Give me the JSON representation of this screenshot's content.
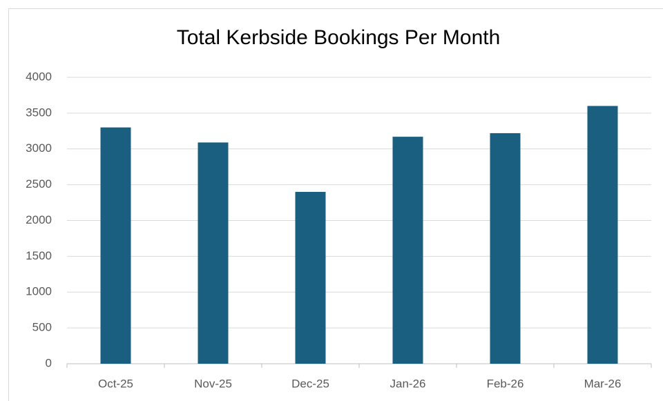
{
  "chart_data": {
    "type": "bar",
    "title": "Total Kerbside Bookings Per Month",
    "categories": [
      "Oct-25",
      "Nov-25",
      "Dec-25",
      "Jan-26",
      "Feb-26",
      "Mar-26"
    ],
    "values": [
      3300,
      3090,
      2400,
      3170,
      3220,
      3600
    ],
    "color": "#1a5e80",
    "ylim": [
      0,
      4000
    ],
    "yticks": [
      0,
      500,
      1000,
      1500,
      2000,
      2500,
      3000,
      3500,
      4000
    ],
    "grid": true
  }
}
